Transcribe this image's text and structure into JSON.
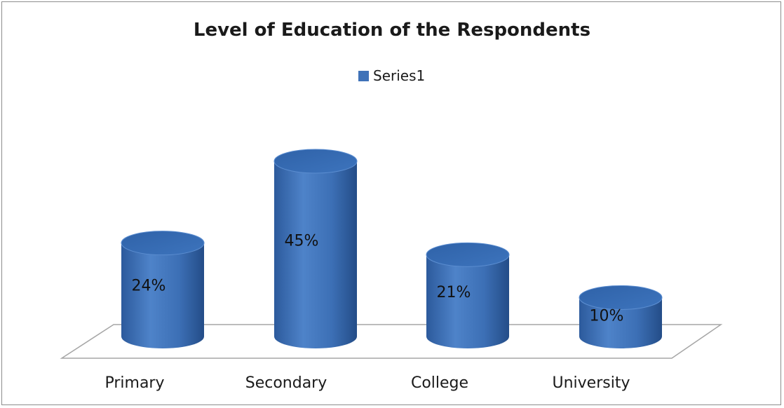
{
  "chart_data": {
    "type": "bar",
    "title": "Level of Education of the Respondents",
    "categories": [
      "Primary",
      "Secondary",
      "College",
      "University"
    ],
    "series": [
      {
        "name": "Series1",
        "values": [
          24,
          45,
          21,
          10
        ],
        "color": "#3f72b8"
      }
    ],
    "data_labels": [
      "24%",
      "45%",
      "21%",
      "10%"
    ],
    "value_unit": "%",
    "ylim": [
      0,
      45
    ],
    "grid": false,
    "legend": "top-center",
    "style": "3d-cylinder"
  }
}
